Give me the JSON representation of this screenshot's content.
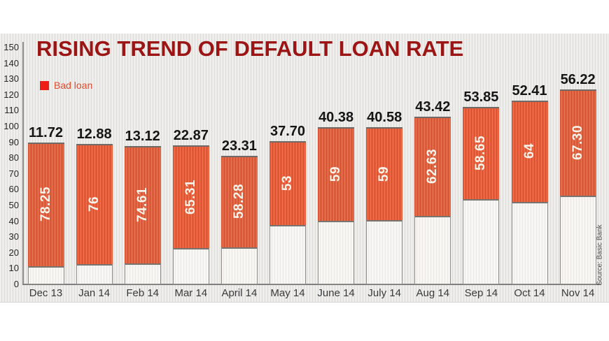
{
  "colors": {
    "bar": "#e45d3a",
    "title": "#9c1515",
    "legend_swatch": "#ee1f16",
    "legend_text": "#e14b30"
  },
  "chart_data": {
    "type": "bar",
    "subtype": "stacked",
    "title": "RISING TREND OF DEFAULT LOAN RATE",
    "legend": [
      {
        "label": "Bad loan"
      }
    ],
    "legend_position": "top-left",
    "source": "Source: Basic Bank",
    "categories": [
      "Dec 13",
      "Jan 14",
      "Feb 14",
      "Mar 14",
      "April 14",
      "May 14",
      "June 14",
      "July 14",
      "Aug 14",
      "Sep 14",
      "Oct 14",
      "Nov 14"
    ],
    "series": [
      {
        "name": "Default loan rate (white base segment, value printed above bar)",
        "values": [
          11.72,
          12.88,
          13.12,
          22.87,
          23.31,
          37.7,
          40.38,
          40.58,
          43.42,
          53.85,
          52.41,
          56.22
        ],
        "labels": [
          "11.72",
          "12.88",
          "13.12",
          "22.87",
          "23.31",
          "37.70",
          "40.38",
          "40.58",
          "43.42",
          "53.85",
          "52.41",
          "56.22"
        ]
      },
      {
        "name": "Bad loan (orange segment, value printed inside bar)",
        "values": [
          78.25,
          76,
          74.61,
          65.31,
          58.28,
          53,
          59,
          59,
          62.63,
          58.65,
          64,
          67.3
        ],
        "labels": [
          "78.25",
          "76",
          "74.61",
          "65.31",
          "58.28",
          "53",
          "59",
          "59",
          "62.63",
          "58.65",
          "64",
          "67.30"
        ]
      }
    ],
    "ylim": [
      0,
      150
    ],
    "yticks": [
      0,
      10,
      20,
      30,
      40,
      50,
      60,
      70,
      80,
      90,
      100,
      110,
      120,
      130,
      140,
      150
    ],
    "grid": false
  }
}
